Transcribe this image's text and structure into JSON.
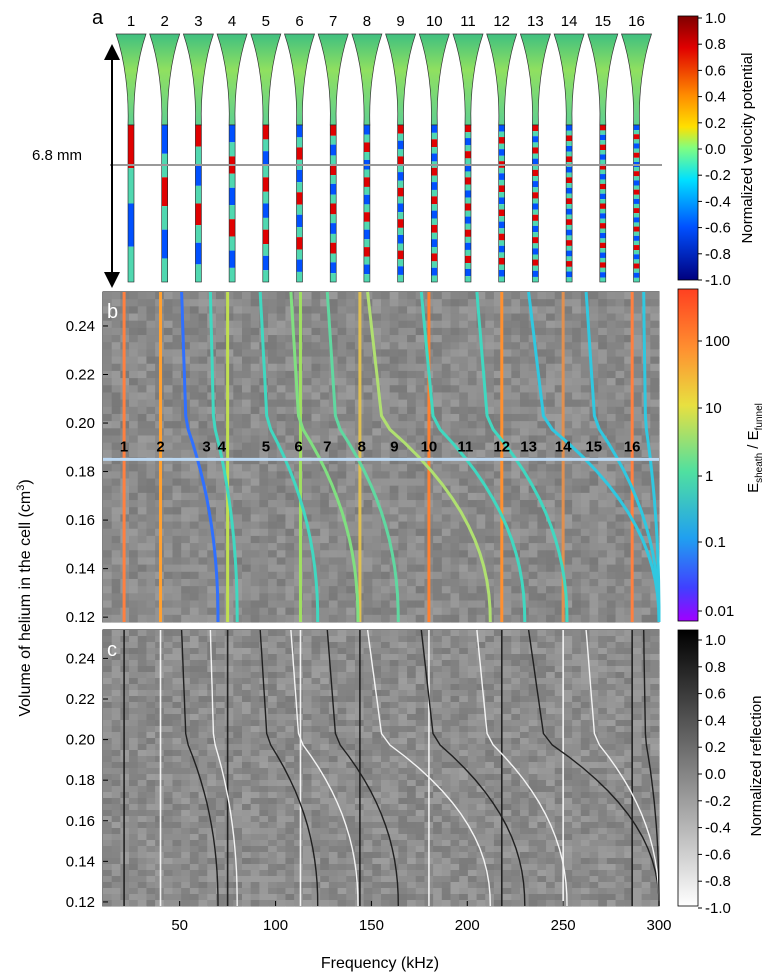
{
  "panel_a": {
    "letter": "a",
    "mode_numbers": [
      "1",
      "2",
      "3",
      "4",
      "5",
      "6",
      "7",
      "8",
      "9",
      "10",
      "11",
      "12",
      "13",
      "14",
      "15",
      "16"
    ],
    "scale_label": "6.8 mm",
    "colorbar": {
      "title": "Normalized velocity potential",
      "ticks": [
        "1.0",
        "0.8",
        "0.6",
        "0.4",
        "0.2",
        "0.0",
        "-0.2",
        "-0.4",
        "-0.6",
        "-0.8",
        "-1.0"
      ]
    }
  },
  "panel_b": {
    "letter": "b",
    "colorbar": {
      "title_main": "E",
      "title_sub1": "sheath",
      "title_sep": " / E",
      "title_sub2": "funnel",
      "ticks": [
        "100",
        "10",
        "1",
        "0.1",
        "0.01"
      ]
    },
    "mode_labels": [
      {
        "text": "1",
        "f": 21
      },
      {
        "text": "2",
        "f": 40
      },
      {
        "text": "3",
        "f": 64
      },
      {
        "text": "4",
        "f": 72
      },
      {
        "text": "5",
        "f": 95
      },
      {
        "text": "6",
        "f": 112
      },
      {
        "text": "7",
        "f": 127
      },
      {
        "text": "8",
        "f": 145
      },
      {
        "text": "9",
        "f": 162
      },
      {
        "text": "10",
        "f": 180
      },
      {
        "text": "11",
        "f": 199
      },
      {
        "text": "12",
        "f": 218
      },
      {
        "text": "13",
        "f": 232
      },
      {
        "text": "14",
        "f": 250
      },
      {
        "text": "15",
        "f": 266
      },
      {
        "text": "16",
        "f": 286
      }
    ]
  },
  "panel_c": {
    "letter": "c",
    "colorbar": {
      "title": "Normalized reflection",
      "ticks": [
        "1.0",
        "0.8",
        "0.6",
        "0.4",
        "0.2",
        "0.0",
        "-0.2",
        "-0.4",
        "-0.6",
        "-0.8",
        "-1.0"
      ]
    }
  },
  "axes": {
    "xlabel": "Frequency (kHz)",
    "xticks": [
      "50",
      "100",
      "150",
      "200",
      "250",
      "300"
    ],
    "ylabel_main": "Volume of helium in the cell (cm",
    "ylabel_sup": "3",
    "ylabel_end": ")",
    "yticks": [
      "0.24",
      "0.22",
      "0.20",
      "0.18",
      "0.16",
      "0.14",
      "0.12"
    ]
  },
  "chart_data": {
    "type": "heatmap",
    "xlabel": "Frequency (kHz)",
    "ylabel": "Volume of helium in the cell (cm3)",
    "xlim": [
      10,
      300
    ],
    "ylim": [
      0.118,
      0.254
    ],
    "marker_volume": 0.185,
    "vertical_modes_khz": [
      21,
      40,
      75,
      113,
      144,
      180,
      218,
      250,
      286
    ],
    "slanted_modes": [
      {
        "v_top": 0.254,
        "f_top": 51,
        "f_bottom": 70
      },
      {
        "v_top": 0.254,
        "f_top": 66,
        "f_bottom": 80
      },
      {
        "v_top": 0.254,
        "f_top": 92,
        "f_bottom": 122
      },
      {
        "v_top": 0.254,
        "f_top": 108,
        "f_bottom": 143
      },
      {
        "v_top": 0.254,
        "f_top": 127,
        "f_bottom": 164
      },
      {
        "v_top": 0.254,
        "f_top": 148,
        "f_bottom": 212
      },
      {
        "v_top": 0.254,
        "f_top": 176,
        "f_bottom": 230
      },
      {
        "v_top": 0.254,
        "f_top": 205,
        "f_bottom": 252
      },
      {
        "v_top": 0.254,
        "f_top": 232,
        "f_bottom": 300
      },
      {
        "v_top": 0.254,
        "f_top": 262,
        "f_bottom": 300
      },
      {
        "v_top": 0.254,
        "f_top": 292,
        "f_bottom": 300
      }
    ]
  }
}
